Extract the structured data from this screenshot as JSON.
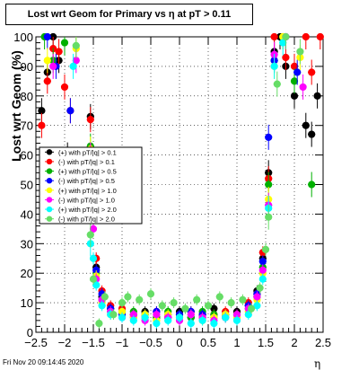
{
  "title": "Lost wrt Geom for Primary vs   η at pT > 0.11",
  "timestamp": "Fri Nov 20 09:14:45 2020",
  "chart_data": {
    "type": "scatter",
    "title": "Lost wrt Geom for Primary vs   η at pT > 0.11",
    "xlabel": "η",
    "ylabel": "Lost wrt Geom (%)",
    "xlim": [
      -2.5,
      2.5
    ],
    "ylim": [
      0,
      100
    ],
    "x_ticks": [
      "−2.5",
      "−2",
      "−1.5",
      "−1",
      "−0.5",
      "0",
      "0.5",
      "1",
      "1.5",
      "2",
      "2.5"
    ],
    "y_ticks": [
      "0",
      "10",
      "20",
      "30",
      "40",
      "50",
      "60",
      "70",
      "80",
      "90",
      "100"
    ],
    "legend_position": "middle-left",
    "series": [
      {
        "name": "(+) with pT/|q| > 0.1",
        "color": "#000000",
        "marker": "circle",
        "points": [
          [
            -2.4,
            75
          ],
          [
            -2.3,
            88
          ],
          [
            -2.2,
            100
          ],
          [
            -2.1,
            92
          ],
          [
            -1.95,
            60
          ],
          [
            -1.85,
            50
          ],
          [
            -1.55,
            73
          ],
          [
            -1.5,
            45
          ],
          [
            -1.45,
            22
          ],
          [
            -1.35,
            12
          ],
          [
            -1.2,
            8
          ],
          [
            -1.0,
            7
          ],
          [
            -0.8,
            6
          ],
          [
            -0.6,
            7
          ],
          [
            -0.4,
            5
          ],
          [
            -0.2,
            6
          ],
          [
            0.0,
            7
          ],
          [
            0.2,
            5
          ],
          [
            0.4,
            6
          ],
          [
            0.6,
            8
          ],
          [
            0.8,
            6
          ],
          [
            1.0,
            7
          ],
          [
            1.2,
            9
          ],
          [
            1.35,
            14
          ],
          [
            1.45,
            25
          ],
          [
            1.55,
            54
          ],
          [
            1.65,
            95
          ],
          [
            1.75,
            100
          ],
          [
            1.85,
            90
          ],
          [
            2.0,
            80
          ],
          [
            2.2,
            70
          ],
          [
            2.3,
            67
          ],
          [
            2.4,
            80
          ]
        ]
      },
      {
        "name": "(-) with pT/|q| > 0.1",
        "color": "#ff0000",
        "marker": "circle",
        "points": [
          [
            -2.4,
            70
          ],
          [
            -2.3,
            85
          ],
          [
            -2.2,
            96
          ],
          [
            -2.1,
            95
          ],
          [
            -2.0,
            83
          ],
          [
            -1.9,
            75
          ],
          [
            -1.55,
            72
          ],
          [
            -1.5,
            48
          ],
          [
            -1.45,
            25
          ],
          [
            -1.35,
            14
          ],
          [
            -1.2,
            9
          ],
          [
            -1.0,
            8
          ],
          [
            -0.8,
            6
          ],
          [
            -0.6,
            5
          ],
          [
            -0.4,
            7
          ],
          [
            -0.2,
            5
          ],
          [
            0.0,
            6
          ],
          [
            0.2,
            7
          ],
          [
            0.4,
            5
          ],
          [
            0.6,
            6
          ],
          [
            0.8,
            7
          ],
          [
            1.0,
            6
          ],
          [
            1.2,
            10
          ],
          [
            1.35,
            13
          ],
          [
            1.45,
            27
          ],
          [
            1.55,
            52
          ],
          [
            1.65,
            100
          ],
          [
            1.85,
            93
          ],
          [
            2.0,
            90
          ],
          [
            2.2,
            100
          ],
          [
            2.3,
            88
          ],
          [
            2.45,
            100
          ]
        ]
      },
      {
        "name": "(+) with pT/|q| > 0.5",
        "color": "#00b000",
        "marker": "circle",
        "points": [
          [
            -2.35,
            100
          ],
          [
            -2.2,
            92
          ],
          [
            -2.0,
            98
          ],
          [
            -1.55,
            63
          ],
          [
            -1.5,
            42
          ],
          [
            -1.45,
            20
          ],
          [
            -1.35,
            11
          ],
          [
            -1.2,
            7
          ],
          [
            -1.0,
            6
          ],
          [
            -0.8,
            7
          ],
          [
            -0.6,
            6
          ],
          [
            -0.4,
            5
          ],
          [
            -0.2,
            7
          ],
          [
            0.0,
            6
          ],
          [
            0.2,
            5
          ],
          [
            0.4,
            7
          ],
          [
            0.6,
            6
          ],
          [
            0.8,
            5
          ],
          [
            1.0,
            6
          ],
          [
            1.2,
            8
          ],
          [
            1.35,
            12
          ],
          [
            1.45,
            22
          ],
          [
            1.55,
            50
          ],
          [
            1.65,
            92
          ],
          [
            1.8,
            100
          ],
          [
            2.0,
            85
          ],
          [
            2.3,
            50
          ]
        ]
      },
      {
        "name": "(-) with pT/|q| > 0.5",
        "color": "#0000ff",
        "marker": "circle",
        "points": [
          [
            -2.3,
            100
          ],
          [
            -2.15,
            90
          ],
          [
            -1.9,
            75
          ],
          [
            -1.55,
            60
          ],
          [
            -1.5,
            40
          ],
          [
            -1.45,
            21
          ],
          [
            -1.35,
            13
          ],
          [
            -1.2,
            8
          ],
          [
            -1.0,
            6
          ],
          [
            -0.8,
            5
          ],
          [
            -0.6,
            6
          ],
          [
            -0.4,
            7
          ],
          [
            -0.2,
            5
          ],
          [
            0.0,
            6
          ],
          [
            0.2,
            7
          ],
          [
            0.4,
            6
          ],
          [
            0.6,
            5
          ],
          [
            0.8,
            6
          ],
          [
            1.0,
            5
          ],
          [
            1.2,
            9
          ],
          [
            1.35,
            13
          ],
          [
            1.45,
            24
          ],
          [
            1.55,
            66
          ],
          [
            1.65,
            92
          ],
          [
            1.85,
            100
          ],
          [
            2.05,
            88
          ]
        ]
      },
      {
        "name": "(+) with pT/|q| > 1.0",
        "color": "#ffff00",
        "marker": "circle",
        "points": [
          [
            -2.3,
            92
          ],
          [
            -1.8,
            96
          ],
          [
            -1.55,
            62
          ],
          [
            -1.5,
            38
          ],
          [
            -1.45,
            19
          ],
          [
            -1.35,
            10
          ],
          [
            -1.2,
            6
          ],
          [
            -1.0,
            7
          ],
          [
            -0.8,
            5
          ],
          [
            -0.6,
            6
          ],
          [
            -0.4,
            4
          ],
          [
            -0.2,
            6
          ],
          [
            0.0,
            5
          ],
          [
            0.2,
            6
          ],
          [
            0.4,
            4
          ],
          [
            0.6,
            5
          ],
          [
            0.8,
            6
          ],
          [
            1.0,
            5
          ],
          [
            1.2,
            7
          ],
          [
            1.35,
            11
          ],
          [
            1.45,
            20
          ],
          [
            1.55,
            45
          ],
          [
            1.65,
            90
          ],
          [
            1.8,
            100
          ],
          [
            2.1,
            93
          ]
        ]
      },
      {
        "name": "(-) with pT/|q| > 1.0",
        "color": "#ff00ff",
        "marker": "circle",
        "points": [
          [
            -2.2,
            90
          ],
          [
            -1.8,
            92
          ],
          [
            -1.55,
            60
          ],
          [
            -1.5,
            35
          ],
          [
            -1.45,
            18
          ],
          [
            -1.35,
            11
          ],
          [
            -1.2,
            7
          ],
          [
            -1.0,
            5
          ],
          [
            -0.8,
            6
          ],
          [
            -0.6,
            4
          ],
          [
            -0.4,
            6
          ],
          [
            -0.2,
            5
          ],
          [
            0.0,
            4
          ],
          [
            0.2,
            6
          ],
          [
            0.4,
            5
          ],
          [
            0.6,
            4
          ],
          [
            0.8,
            5
          ],
          [
            1.0,
            6
          ],
          [
            1.2,
            8
          ],
          [
            1.35,
            12
          ],
          [
            1.45,
            21
          ],
          [
            1.55,
            43
          ],
          [
            1.65,
            94
          ],
          [
            1.85,
            100
          ],
          [
            2.15,
            83
          ]
        ]
      },
      {
        "name": "(+) with pT/|q| > 2.0",
        "color": "#00ffff",
        "marker": "circle",
        "points": [
          [
            -1.85,
            90
          ],
          [
            -1.55,
            30
          ],
          [
            -1.5,
            25
          ],
          [
            -1.45,
            16
          ],
          [
            -1.35,
            9
          ],
          [
            -1.2,
            6
          ],
          [
            -1.0,
            5
          ],
          [
            -0.8,
            4
          ],
          [
            -0.6,
            5
          ],
          [
            -0.4,
            3
          ],
          [
            -0.2,
            4
          ],
          [
            0.0,
            5
          ],
          [
            0.2,
            3
          ],
          [
            0.4,
            4
          ],
          [
            0.6,
            3
          ],
          [
            0.8,
            5
          ],
          [
            1.0,
            4
          ],
          [
            1.2,
            6
          ],
          [
            1.35,
            9
          ],
          [
            1.45,
            18
          ],
          [
            1.55,
            42
          ],
          [
            1.65,
            90
          ],
          [
            1.8,
            98
          ]
        ]
      },
      {
        "name": "(-) with pT/|q| > 2.0",
        "color": "#66dd66",
        "marker": "circle",
        "points": [
          [
            -1.8,
            97
          ],
          [
            -1.55,
            33
          ],
          [
            -1.5,
            18
          ],
          [
            -1.4,
            3
          ],
          [
            -1.3,
            12
          ],
          [
            -1.15,
            6
          ],
          [
            -1.0,
            10
          ],
          [
            -0.9,
            12
          ],
          [
            -0.7,
            11
          ],
          [
            -0.5,
            13
          ],
          [
            -0.3,
            9
          ],
          [
            -0.1,
            10
          ],
          [
            0.1,
            8
          ],
          [
            0.3,
            11
          ],
          [
            0.5,
            9
          ],
          [
            0.7,
            12
          ],
          [
            0.9,
            10
          ],
          [
            1.1,
            11
          ],
          [
            1.25,
            8
          ],
          [
            1.4,
            15
          ],
          [
            1.5,
            28
          ],
          [
            1.55,
            39
          ],
          [
            1.7,
            84
          ],
          [
            1.85,
            100
          ],
          [
            2.1,
            95
          ]
        ]
      }
    ]
  }
}
